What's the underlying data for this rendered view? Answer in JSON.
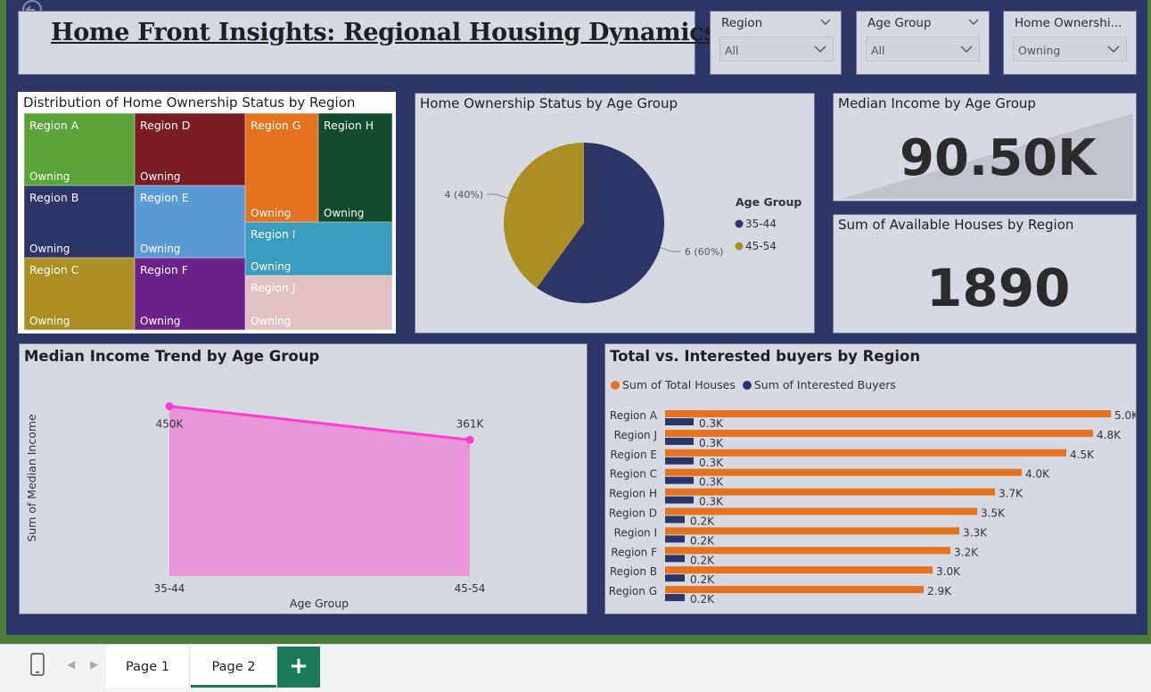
{
  "header": {
    "title": "Home Front Insights: Regional Housing Dynamics"
  },
  "slicers": [
    {
      "label": "Region",
      "value": "All"
    },
    {
      "label": "Age Group",
      "value": "All"
    },
    {
      "label": "Home Ownershi...",
      "value": "Owning"
    }
  ],
  "treemap": {
    "title": "Distribution of Home Ownership Status by Region",
    "cells": [
      {
        "region": "Region A",
        "status": "Owning",
        "color": "#5aa339"
      },
      {
        "region": "Region D",
        "status": "Owning",
        "color": "#7b1c25"
      },
      {
        "region": "Region G",
        "status": "Owning",
        "color": "#e5721f"
      },
      {
        "region": "Region H",
        "status": "Owning",
        "color": "#124a2e"
      },
      {
        "region": "Region B",
        "status": "Owning",
        "color": "#2c3568"
      },
      {
        "region": "Region E",
        "status": "Owning",
        "color": "#5b9bd5"
      },
      {
        "region": "Region I",
        "status": "Owning",
        "color": "#3a9dbd"
      },
      {
        "region": "Region C",
        "status": "Owning",
        "color": "#ab8f23"
      },
      {
        "region": "Region F",
        "status": "Owning",
        "color": "#6a218a"
      },
      {
        "region": "Region J",
        "status": "Owning",
        "color": "#e2c0c4"
      }
    ]
  },
  "pie": {
    "title": "Home Ownership Status by Age Group",
    "legend_title": "Age Group",
    "slices": [
      {
        "label": "35-44",
        "value": 6,
        "data_label": "6 (60%)",
        "color": "#2c3568"
      },
      {
        "label": "45-54",
        "value": 4,
        "data_label": "4 (40%)",
        "color": "#ab8f23"
      }
    ]
  },
  "kpi_income": {
    "title": "Median Income by Age Group",
    "value": "90.50K"
  },
  "kpi_houses": {
    "title": "Sum of Available Houses by Region",
    "value": "1890"
  },
  "area_chart": {
    "title": "Median Income Trend by Age Group",
    "xlabel": "Age Group",
    "ylabel": "Sum of Median Income",
    "color": "#ff3dd2",
    "fill": "#e896d9"
  },
  "bar_chart": {
    "title": "Total vs. Interested buyers by Region",
    "legend": [
      {
        "name": "Sum of Total Houses",
        "color": "#e5721f"
      },
      {
        "name": "Sum of Interested Buyers",
        "color": "#2c3568"
      }
    ]
  },
  "chart_data": [
    {
      "type": "pie",
      "title": "Home Ownership Status by Age Group",
      "categories": [
        "35-44",
        "45-54"
      ],
      "values": [
        6,
        4
      ],
      "legend": "right"
    },
    {
      "type": "area",
      "title": "Median Income Trend by Age Group",
      "xlabel": "Age Group",
      "ylabel": "Sum of Median Income",
      "categories": [
        "35-44",
        "45-54"
      ],
      "values": [
        450000,
        361000
      ],
      "data_labels": [
        "450K",
        "361K"
      ],
      "ylim": [
        0,
        520000
      ]
    },
    {
      "type": "bar",
      "orientation": "horizontal",
      "title": "Total vs. Interested buyers by Region",
      "categories": [
        "Region A",
        "Region J",
        "Region E",
        "Region C",
        "Region H",
        "Region D",
        "Region I",
        "Region F",
        "Region B",
        "Region G"
      ],
      "series": [
        {
          "name": "Sum of Total Houses",
          "values": [
            5000,
            4800,
            4500,
            4000,
            3700,
            3500,
            3300,
            3200,
            3000,
            2900
          ],
          "labels": [
            "5.0K",
            "4.8K",
            "4.5K",
            "4.0K",
            "3.7K",
            "3.5K",
            "3.3K",
            "3.2K",
            "3.0K",
            "2.9K"
          ]
        },
        {
          "name": "Sum of Interested Buyers",
          "values": [
            300,
            300,
            300,
            300,
            300,
            200,
            200,
            200,
            200,
            200
          ],
          "labels": [
            "0.3K",
            "0.3K",
            "0.3K",
            "0.3K",
            "0.3K",
            "0.2K",
            "0.2K",
            "0.2K",
            "0.2K",
            "0.2K"
          ]
        }
      ],
      "legend": "top-left"
    }
  ],
  "tabs": [
    {
      "label": "Page 1",
      "active": false
    },
    {
      "label": "Page 2",
      "active": true
    }
  ],
  "add_page": "+"
}
